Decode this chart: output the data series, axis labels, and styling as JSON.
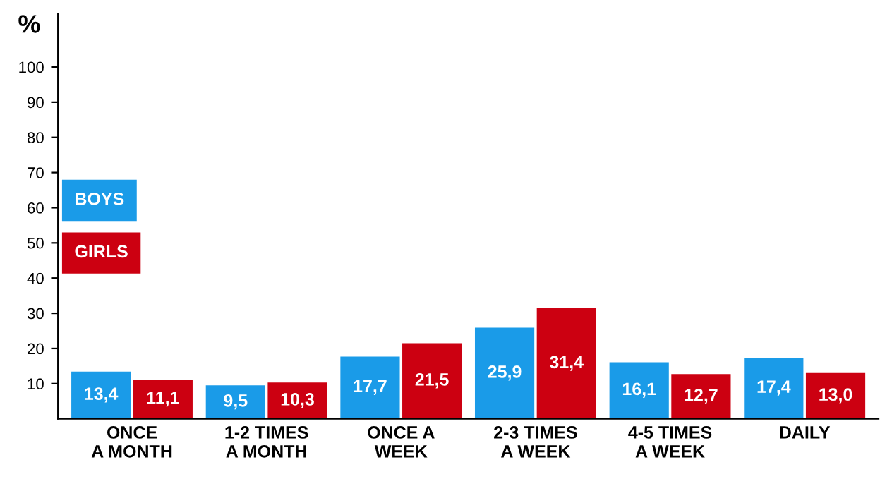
{
  "chart_data": {
    "type": "bar",
    "ylabel": "%",
    "categories": [
      "ONCE\nA MONTH",
      "1-2 TIMES\nA MONTH",
      "ONCE A\nWEEK",
      "2-3 TIMES\nA WEEK",
      "4-5 TIMES\nA WEEK",
      "DAILY"
    ],
    "series": [
      {
        "name": "BOYS",
        "color": "#1a9be8",
        "values": [
          13.4,
          9.5,
          17.7,
          25.9,
          16.1,
          17.4
        ],
        "value_labels": [
          "13,4",
          "9,5",
          "17,7",
          "25,9",
          "16,1",
          "17,4"
        ]
      },
      {
        "name": "GIRLS",
        "color": "#cc0011",
        "values": [
          11.1,
          10.3,
          21.5,
          31.4,
          12.7,
          13.0
        ],
        "value_labels": [
          "11,1",
          "10,3",
          "21,5",
          "31,4",
          "12,7",
          "13,0"
        ]
      }
    ],
    "ylim": [
      0,
      115
    ],
    "yticks": [
      10,
      20,
      30,
      40,
      50,
      60,
      70,
      80,
      90,
      100
    ],
    "grid": false,
    "legend": "left"
  }
}
